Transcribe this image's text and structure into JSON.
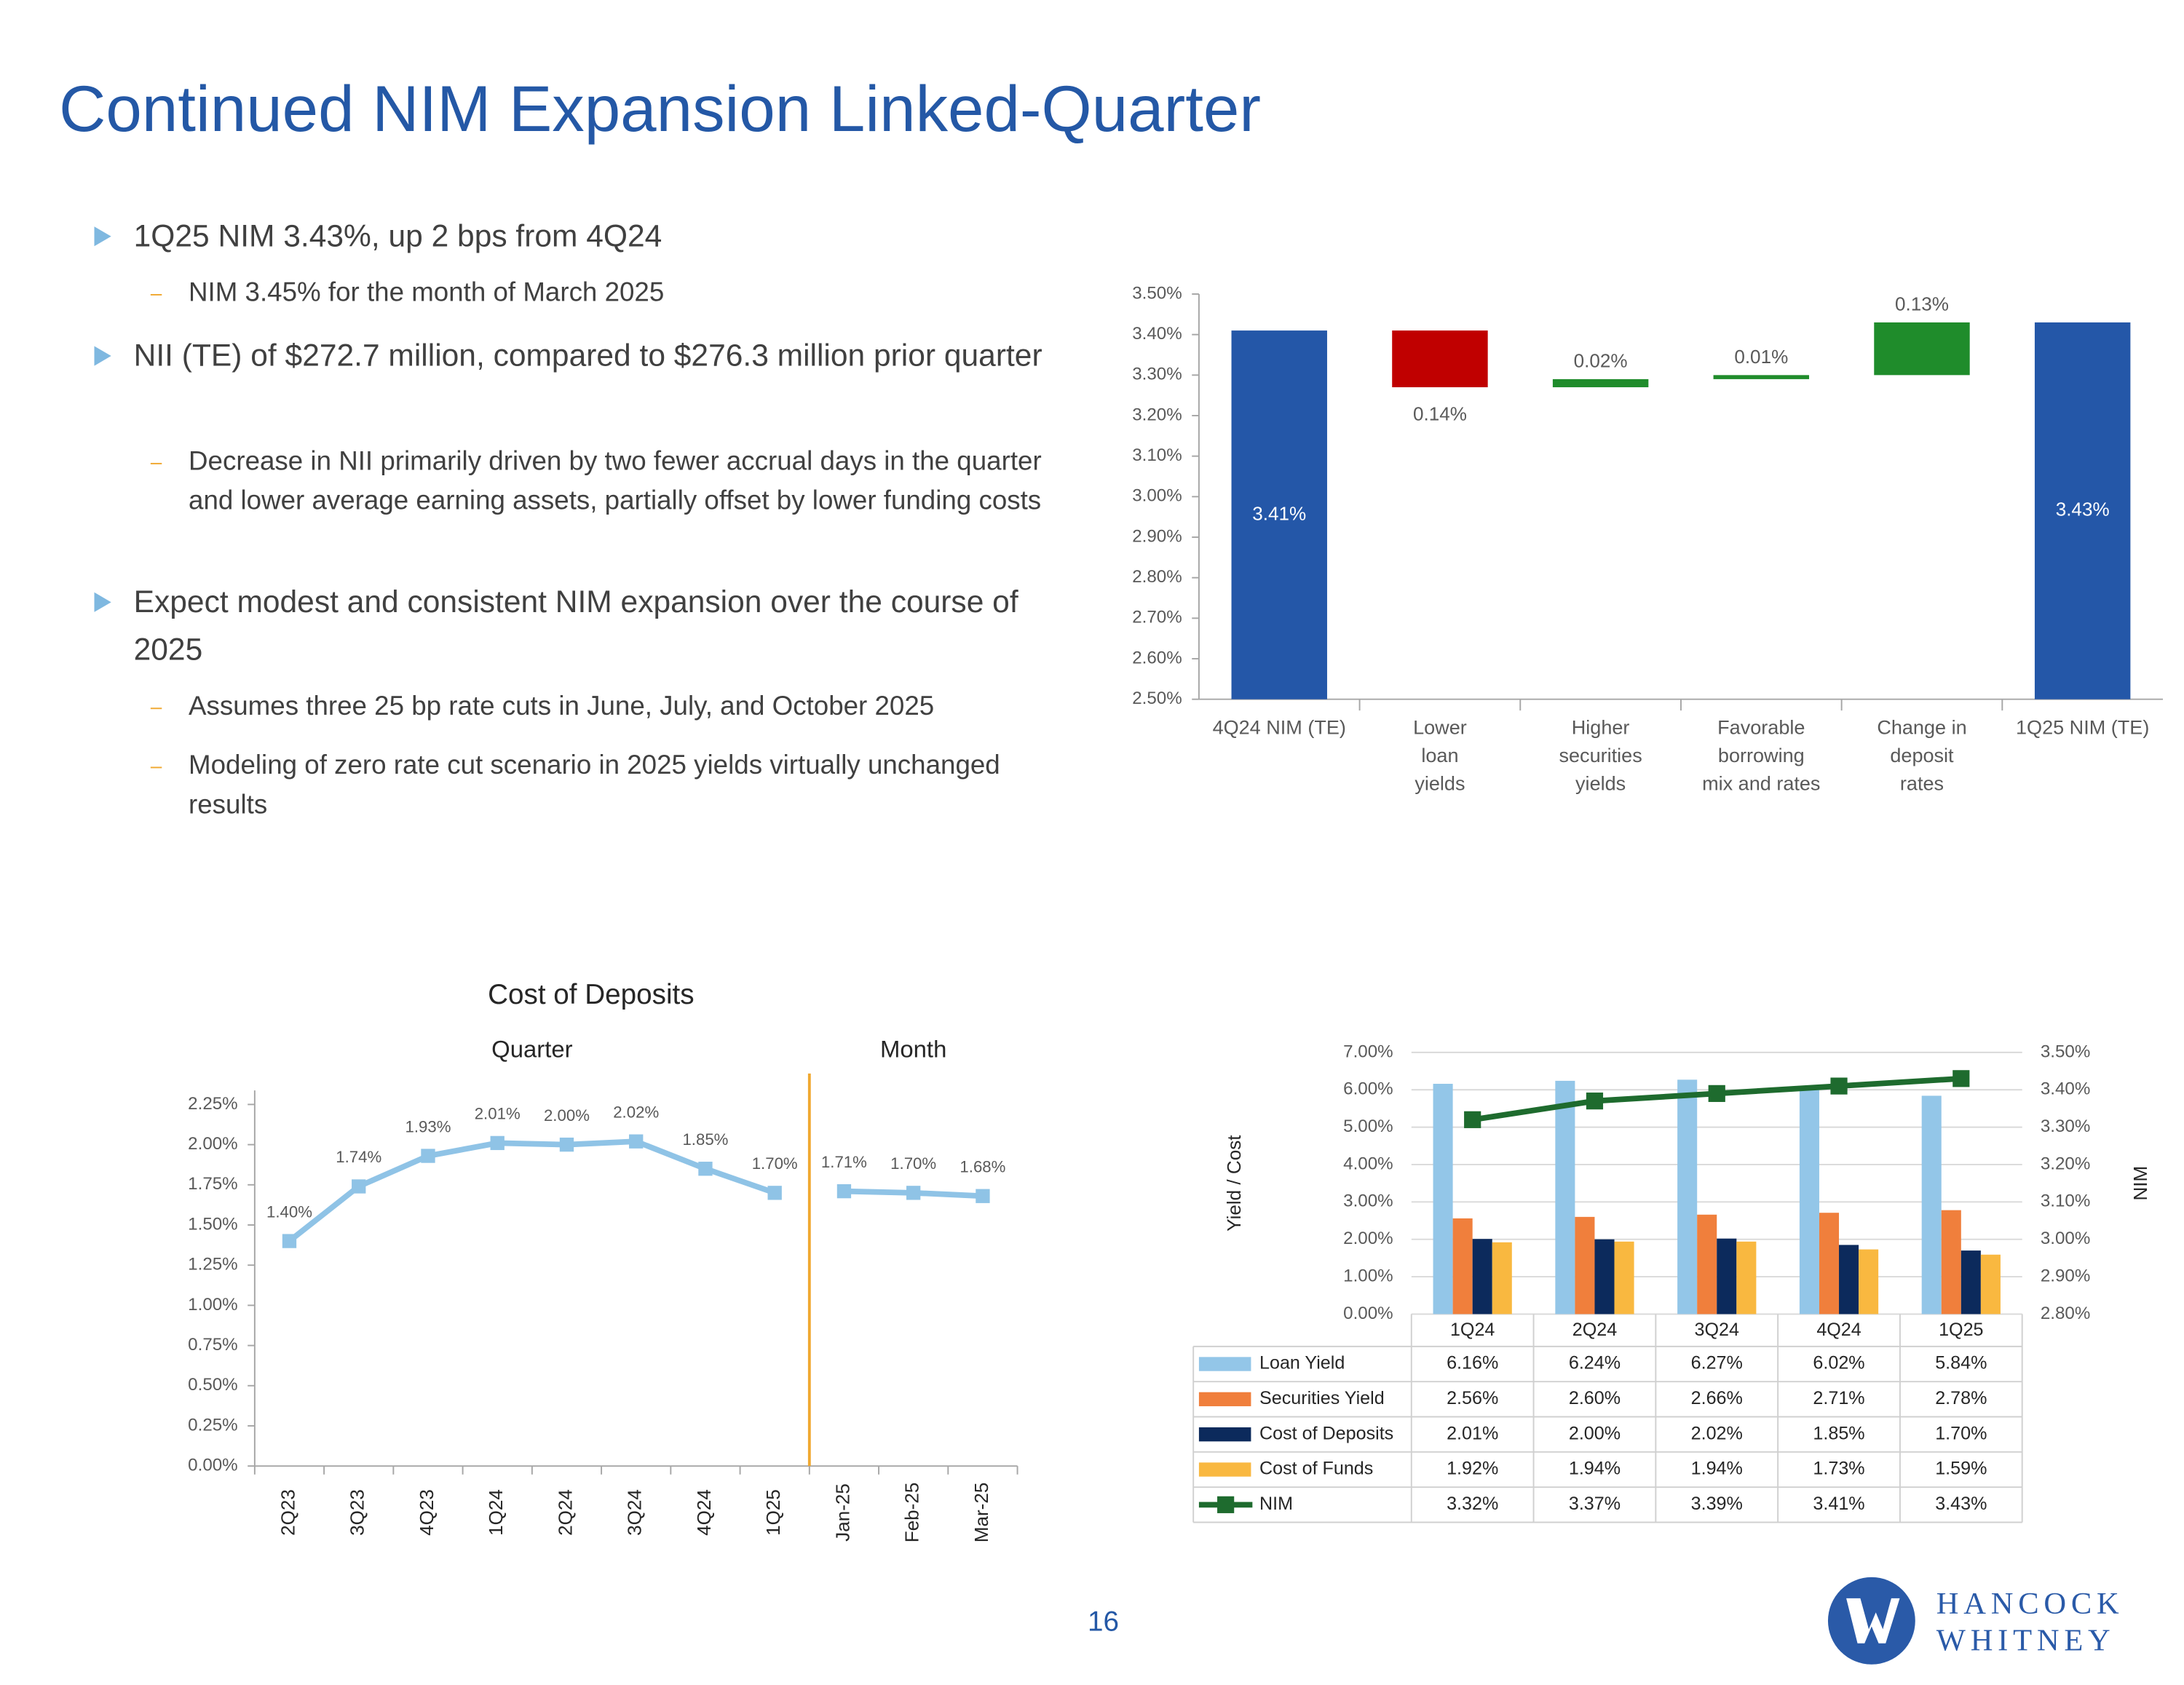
{
  "title": "Continued NIM Expansion Linked-Quarter",
  "bullets": [
    {
      "text": "1Q25 NIM 3.43%, up 2 bps from 4Q24",
      "sub": [
        "NIM 3.45% for the month of March 2025"
      ]
    },
    {
      "text": "NII (TE) of $272.7 million, compared to $276.3 million prior quarter",
      "sub": [
        "Decrease in NII primarily driven by two fewer accrual days in the quarter and lower average earning assets, partially offset by lower funding costs"
      ]
    },
    {
      "text": "Expect modest and consistent NIM expansion over the course of 2025",
      "sub": [
        "Assumes three 25 bp rate cuts in June, July, and October 2025",
        "Modeling of zero rate cut scenario in 2025 yields virtually unchanged results"
      ]
    }
  ],
  "page_number": "16",
  "logo": [
    "HANCOCK",
    "WHITNEY"
  ],
  "chart_data": [
    {
      "type": "waterfall",
      "categories": [
        "4Q24 NIM (TE)",
        "Lower\nloan\nyields",
        "Higher\nsecurities\nyields",
        "Favorable\nborrowing\nmix and rates",
        "Change in\ndeposit\nrates",
        "1Q25 NIM (TE)"
      ],
      "values": [
        3.41,
        -0.14,
        0.02,
        0.01,
        0.13,
        3.43
      ],
      "value_labels": [
        "3.41%",
        "0.14%",
        "0.02%",
        "0.01%",
        "0.13%",
        "3.43%"
      ],
      "colors": {
        "total": "#2457a8",
        "decrease": "#c00000",
        "increase": "#1f8c2b"
      },
      "ylim": [
        2.5,
        3.5
      ],
      "yticks": [
        {
          "value": 2.5,
          "label": "2.50%"
        },
        {
          "value": 2.6,
          "label": "2.60%"
        },
        {
          "value": 2.7,
          "label": "2.70%"
        },
        {
          "value": 2.8,
          "label": "2.80%"
        },
        {
          "value": 2.9,
          "label": "2.90%"
        },
        {
          "value": 3.0,
          "label": "3.00%"
        },
        {
          "value": 3.1,
          "label": "3.10%"
        },
        {
          "value": 3.2,
          "label": "3.20%"
        },
        {
          "value": 3.3,
          "label": "3.30%"
        },
        {
          "value": 3.4,
          "label": "3.40%"
        },
        {
          "value": 3.5,
          "label": "3.50%"
        }
      ],
      "grid": false
    },
    {
      "type": "line",
      "title": "Cost of Deposits",
      "categories": [
        "2Q23",
        "3Q23",
        "4Q23",
        "1Q24",
        "2Q24",
        "3Q24",
        "4Q24",
        "1Q25",
        "Jan-25",
        "Feb-25",
        "Mar-25"
      ],
      "series": [
        {
          "name": "Quarter",
          "color": "#8fc3e6",
          "values": [
            1.4,
            1.74,
            1.93,
            2.01,
            2.0,
            2.02,
            1.85,
            1.7,
            null,
            null,
            null
          ],
          "value_labels": [
            "1.40%",
            "1.74%",
            "1.93%",
            "2.01%",
            "2.00%",
            "2.02%",
            "1.85%",
            "1.70%",
            null,
            null,
            null
          ]
        },
        {
          "name": "Month",
          "color": "#8fc3e6",
          "values": [
            null,
            null,
            null,
            null,
            null,
            null,
            null,
            null,
            1.71,
            1.7,
            1.68
          ],
          "value_labels": [
            null,
            null,
            null,
            null,
            null,
            null,
            null,
            null,
            "1.71%",
            "1.70%",
            "1.68%"
          ]
        }
      ],
      "divider_color": "#f0a830",
      "ylim": [
        0,
        2.25
      ],
      "yticks": [
        {
          "value": 0,
          "label": "0.00%"
        },
        {
          "value": 0.25,
          "label": "0.25%"
        },
        {
          "value": 0.5,
          "label": "0.50%"
        },
        {
          "value": 0.75,
          "label": "0.75%"
        },
        {
          "value": 1.0,
          "label": "1.00%"
        },
        {
          "value": 1.25,
          "label": "1.25%"
        },
        {
          "value": 1.5,
          "label": "1.50%"
        },
        {
          "value": 1.75,
          "label": "1.75%"
        },
        {
          "value": 2.0,
          "label": "2.00%"
        },
        {
          "value": 2.25,
          "label": "2.25%"
        }
      ],
      "grid": false
    },
    {
      "type": "combo",
      "categories": [
        "1Q24",
        "2Q24",
        "3Q24",
        "4Q24",
        "1Q25"
      ],
      "ylabel": "Yield / Cost",
      "y2label": "NIM",
      "series": [
        {
          "name": "Loan Yield",
          "type": "bar",
          "color": "#93c6e8",
          "values": [
            6.16,
            6.24,
            6.27,
            6.02,
            5.84
          ],
          "value_labels": [
            "6.16%",
            "6.24%",
            "6.27%",
            "6.02%",
            "5.84%"
          ]
        },
        {
          "name": "Securities Yield",
          "type": "bar",
          "color": "#f07f3c",
          "values": [
            2.56,
            2.6,
            2.66,
            2.71,
            2.78
          ],
          "value_labels": [
            "2.56%",
            "2.60%",
            "2.66%",
            "2.71%",
            "2.78%"
          ]
        },
        {
          "name": "Cost of Deposits",
          "type": "bar",
          "color": "#0c2a5c",
          "values": [
            2.01,
            2.0,
            2.02,
            1.85,
            1.7
          ],
          "value_labels": [
            "2.01%",
            "2.00%",
            "2.02%",
            "1.85%",
            "1.70%"
          ]
        },
        {
          "name": "Cost of Funds",
          "type": "bar",
          "color": "#f9b840",
          "values": [
            1.92,
            1.94,
            1.94,
            1.73,
            1.59
          ],
          "value_labels": [
            "1.92%",
            "1.94%",
            "1.94%",
            "1.73%",
            "1.59%"
          ]
        },
        {
          "name": "NIM",
          "type": "line",
          "axis": "y2",
          "color": "#1e6b2e",
          "values": [
            3.32,
            3.37,
            3.39,
            3.41,
            3.43
          ],
          "value_labels": [
            "3.32%",
            "3.37%",
            "3.39%",
            "3.41%",
            "3.43%"
          ]
        }
      ],
      "ylim": [
        0,
        7
      ],
      "yticks": [
        {
          "value": 0,
          "label": "0.00%"
        },
        {
          "value": 1,
          "label": "1.00%"
        },
        {
          "value": 2,
          "label": "2.00%"
        },
        {
          "value": 3,
          "label": "3.00%"
        },
        {
          "value": 4,
          "label": "4.00%"
        },
        {
          "value": 5,
          "label": "5.00%"
        },
        {
          "value": 6,
          "label": "6.00%"
        },
        {
          "value": 7,
          "label": "7.00%"
        }
      ],
      "y2lim": [
        2.8,
        3.5
      ],
      "y2ticks": [
        {
          "value": 2.8,
          "label": "2.80%"
        },
        {
          "value": 2.9,
          "label": "2.90%"
        },
        {
          "value": 3.0,
          "label": "3.00%"
        },
        {
          "value": 3.1,
          "label": "3.10%"
        },
        {
          "value": 3.2,
          "label": "3.20%"
        },
        {
          "value": 3.3,
          "label": "3.30%"
        },
        {
          "value": 3.4,
          "label": "3.40%"
        },
        {
          "value": 3.5,
          "label": "3.50%"
        }
      ],
      "grid": true
    }
  ]
}
